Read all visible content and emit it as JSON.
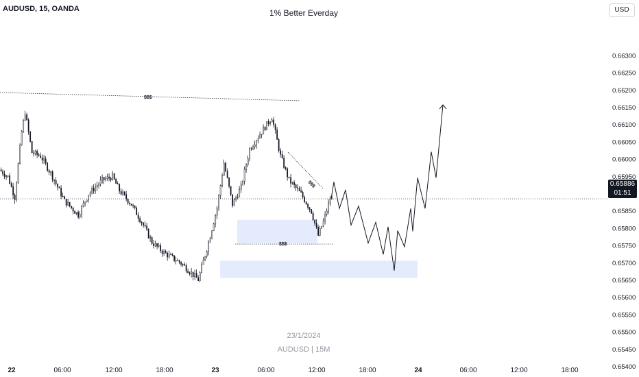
{
  "header": {
    "symbol": "AUDUSD, 15, OANDA",
    "title": "1% Better Everday",
    "currency": "USD"
  },
  "watermark": {
    "date": "23/1/2024",
    "name": "AUDUSD | 15M"
  },
  "price_label": {
    "price": "0.65886",
    "countdown": "01:51"
  },
  "colors": {
    "candle": "#131722",
    "zone": "#e3ebfc",
    "grid_text": "#131722",
    "projection": "#131722"
  },
  "chart_data": {
    "type": "candlestick",
    "y_axis": {
      "range": [
        0.654,
        0.6635
      ],
      "ticks": [
        "0.66300",
        "0.66250",
        "0.66200",
        "0.66150",
        "0.66100",
        "0.66050",
        "0.66000",
        "0.65950",
        "0.65900",
        "0.65850",
        "0.65800",
        "0.65750",
        "0.65700",
        "0.65650",
        "0.65600",
        "0.65550",
        "0.65500",
        "0.65450",
        "0.65400"
      ]
    },
    "x_axis": {
      "ticks": [
        "22",
        "06:00",
        "12:00",
        "18:00",
        "23",
        "06:00",
        "12:00",
        "18:00",
        "24",
        "06:00",
        "12:00",
        "18:00"
      ],
      "bold": [
        "22",
        "23",
        "24"
      ]
    },
    "current_price": 0.65886,
    "annotations": [
      {
        "text": "$$$",
        "level": 0.66123
      },
      {
        "text": "$$$",
        "level": 0.65755
      },
      {
        "text": "$$$",
        "level": 0.65868
      }
    ],
    "zones": [
      {
        "from": 0.65825,
        "to": 0.65757
      },
      {
        "from": 0.65707,
        "to": 0.65657
      }
    ],
    "swing_points": [
      {
        "label": "high",
        "value": 0.66137
      },
      {
        "label": "low",
        "value": 0.65652
      },
      {
        "label": "high",
        "value": 0.66122
      },
      {
        "label": "low",
        "value": 0.65758
      },
      {
        "label": "target",
        "value": 0.66158
      }
    ],
    "projection": [
      0.65886,
      0.65935,
      0.65858,
      0.65912,
      0.6581,
      0.65865,
      0.65758,
      0.65818,
      0.65725,
      0.65805,
      0.65678,
      0.65794,
      0.65747,
      0.65858,
      0.65792,
      0.65947,
      0.65858,
      0.66022,
      0.65947,
      0.66158
    ]
  }
}
